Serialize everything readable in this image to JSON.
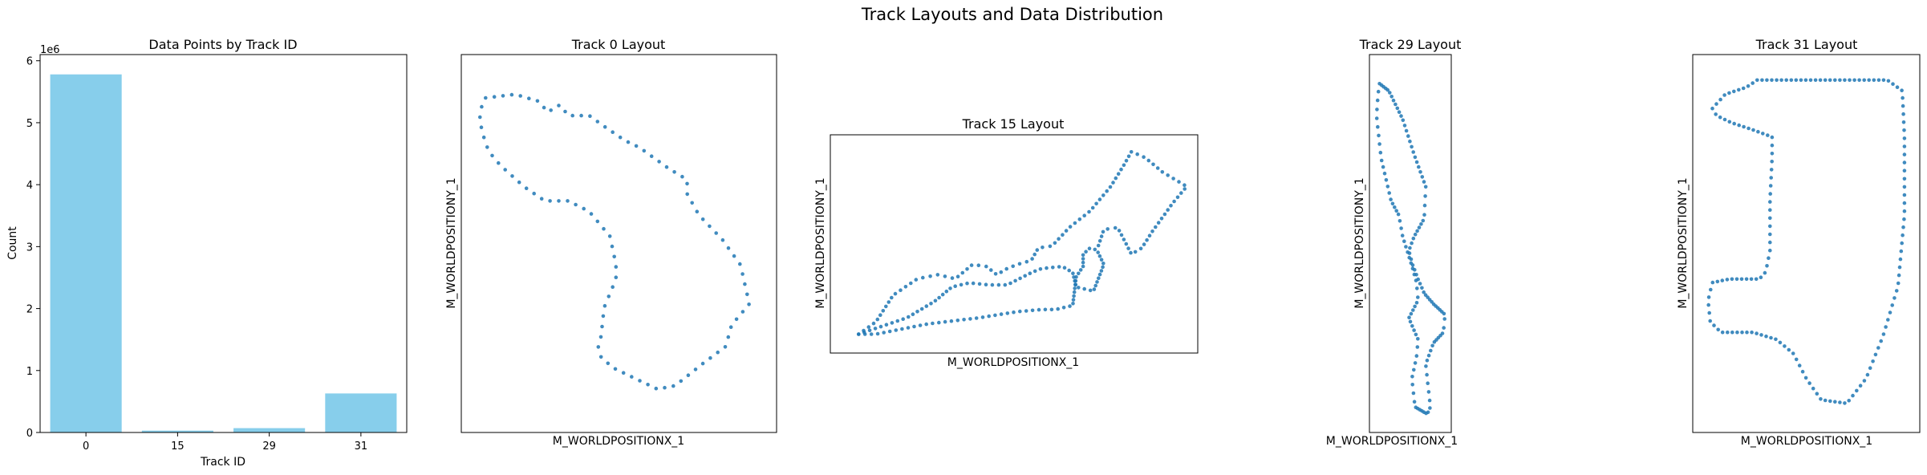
{
  "figure": {
    "title": "Track Layouts and Data Distribution"
  },
  "colors": {
    "bar": "#87CEEB",
    "points": "#1f77b4",
    "axes": "#000000"
  },
  "chart_data": [
    {
      "type": "bar",
      "title": "Data Points by Track ID",
      "xlabel": "Track ID",
      "ylabel": "Count",
      "offset_text": "1e6",
      "categories": [
        "0",
        "15",
        "29",
        "31"
      ],
      "values": [
        5780000,
        30000,
        70000,
        630000
      ],
      "ylim": [
        0,
        6100000
      ],
      "yticks": [
        0,
        1,
        2,
        3,
        4,
        5,
        6
      ],
      "ytick_scale": 1000000,
      "grid": false
    },
    {
      "type": "scatter",
      "title": "Track 0 Layout",
      "xlabel": "M_WORLDPOSITIONX_1",
      "ylabel": "M_WORLDPOSITIONY_1",
      "ticks_hidden": true,
      "closed": true,
      "point_count": 95,
      "outline": [
        [
          5,
          91
        ],
        [
          15,
          92
        ],
        [
          23,
          90
        ],
        [
          26,
          87
        ],
        [
          30,
          89
        ],
        [
          33,
          86
        ],
        [
          40,
          86
        ],
        [
          45,
          83
        ],
        [
          52,
          79
        ],
        [
          57,
          77
        ],
        [
          62,
          74
        ],
        [
          67,
          71
        ],
        [
          73,
          68
        ],
        [
          73,
          64
        ],
        [
          77,
          58
        ],
        [
          85,
          51
        ],
        [
          91,
          44
        ],
        [
          94,
          33
        ],
        [
          88,
          27
        ],
        [
          86,
          21
        ],
        [
          78,
          16
        ],
        [
          69,
          10
        ],
        [
          63,
          9
        ],
        [
          48,
          15
        ],
        [
          44,
          18
        ],
        [
          43,
          21
        ],
        [
          44,
          24
        ],
        [
          45,
          32
        ],
        [
          49,
          40
        ],
        [
          49,
          44
        ],
        [
          47,
          52
        ],
        [
          40,
          59
        ],
        [
          33,
          62
        ],
        [
          25,
          62
        ],
        [
          18,
          66
        ],
        [
          10,
          72
        ],
        [
          6,
          76
        ],
        [
          4,
          81
        ],
        [
          3,
          85
        ],
        [
          4,
          90
        ]
      ],
      "grid": false
    },
    {
      "type": "scatter",
      "title": "Track 15 Layout",
      "xlabel": "M_WORLDPOSITIONX_1",
      "ylabel": "M_WORLDPOSITIONY_1",
      "ticks_hidden": true,
      "closed": true,
      "point_count": 110,
      "outline": [
        [
          5,
          6
        ],
        [
          12,
          10
        ],
        [
          19,
          14
        ],
        [
          27,
          22
        ],
        [
          32,
          29
        ],
        [
          37,
          31
        ],
        [
          43,
          30
        ],
        [
          48,
          30
        ],
        [
          55,
          36
        ],
        [
          58,
          38
        ],
        [
          64,
          39
        ],
        [
          67,
          36
        ],
        [
          68,
          29
        ],
        [
          73,
          27
        ],
        [
          76,
          40
        ],
        [
          74,
          47
        ],
        [
          72,
          48
        ],
        [
          70,
          45
        ],
        [
          70,
          39
        ],
        [
          68,
          34
        ],
        [
          67,
          20
        ],
        [
          62,
          18
        ],
        [
          58,
          18
        ],
        [
          51,
          17
        ],
        [
          40,
          14
        ],
        [
          25,
          11
        ],
        [
          10,
          6
        ]
      ],
      "outline_b": [
        [
          5,
          6
        ],
        [
          10,
          12
        ],
        [
          15,
          25
        ],
        [
          22,
          33
        ],
        [
          28,
          35
        ],
        [
          33,
          33
        ],
        [
          38,
          40
        ],
        [
          42,
          39
        ],
        [
          45,
          35
        ],
        [
          48,
          38
        ],
        [
          51,
          40
        ],
        [
          55,
          42
        ],
        [
          57,
          48
        ],
        [
          61,
          49
        ],
        [
          66,
          58
        ],
        [
          72,
          66
        ],
        [
          78,
          78
        ],
        [
          82,
          89
        ],
        [
          84,
          95
        ],
        [
          88,
          92
        ],
        [
          93,
          85
        ],
        [
          100,
          78
        ],
        [
          96,
          70
        ],
        [
          90,
          56
        ],
        [
          87,
          48
        ],
        [
          84,
          45
        ],
        [
          80,
          58
        ],
        [
          76,
          57
        ],
        [
          74,
          47
        ]
      ],
      "grid": false
    },
    {
      "type": "scatter",
      "title": "Track 29 Layout",
      "xlabel": "M_WORLDPOSITIONX_1",
      "ylabel": "M_WORLDPOSITIONY_1",
      "ticks_hidden": true,
      "closed": true,
      "point_count": 130,
      "outline": [
        [
          10,
          95
        ],
        [
          22,
          93
        ],
        [
          40,
          85
        ],
        [
          55,
          75
        ],
        [
          70,
          66
        ],
        [
          68,
          57
        ],
        [
          55,
          52
        ],
        [
          48,
          48
        ],
        [
          53,
          44
        ],
        [
          60,
          40
        ],
        [
          68,
          36
        ],
        [
          80,
          33
        ],
        [
          95,
          30
        ],
        [
          93,
          25
        ],
        [
          80,
          22
        ],
        [
          70,
          16
        ],
        [
          73,
          10
        ],
        [
          76,
          4
        ],
        [
          72,
          2
        ],
        [
          56,
          4
        ],
        [
          52,
          12
        ],
        [
          58,
          18
        ],
        [
          60,
          23
        ],
        [
          48,
          29
        ],
        [
          60,
          34
        ],
        [
          58,
          39
        ],
        [
          53,
          43
        ],
        [
          40,
          52
        ],
        [
          35,
          58
        ],
        [
          25,
          62
        ],
        [
          12,
          74
        ],
        [
          6,
          86
        ],
        [
          8,
          92
        ]
      ],
      "grid": false
    },
    {
      "type": "scatter",
      "title": "Track 31 Layout",
      "xlabel": "M_WORLDPOSITIONX_1",
      "ylabel": "M_WORLDPOSITIONY_1",
      "ticks_hidden": true,
      "closed": true,
      "point_count": 160,
      "outline": [
        [
          27,
          96
        ],
        [
          88,
          96
        ],
        [
          95,
          93
        ],
        [
          96,
          80
        ],
        [
          96,
          58
        ],
        [
          93,
          38
        ],
        [
          86,
          24
        ],
        [
          78,
          12
        ],
        [
          69,
          5
        ],
        [
          57,
          6
        ],
        [
          50,
          12
        ],
        [
          44,
          19
        ],
        [
          36,
          23
        ],
        [
          25,
          25
        ],
        [
          10,
          25
        ],
        [
          5,
          28
        ],
        [
          4,
          34
        ],
        [
          6,
          39
        ],
        [
          14,
          40
        ],
        [
          28,
          40
        ],
        [
          31,
          42
        ],
        [
          33,
          48
        ],
        [
          33,
          62
        ],
        [
          34,
          74
        ],
        [
          34,
          80
        ],
        [
          25,
          82
        ],
        [
          15,
          84
        ],
        [
          8,
          86
        ],
        [
          6,
          88
        ],
        [
          12,
          92
        ],
        [
          22,
          94
        ]
      ],
      "grid": false
    }
  ]
}
